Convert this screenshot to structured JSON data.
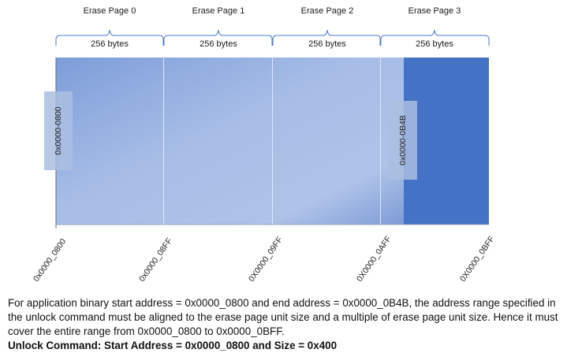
{
  "pages": [
    {
      "name": "Erase Page 0",
      "size": "256 bytes"
    },
    {
      "name": "Erase Page 1",
      "size": "256 bytes"
    },
    {
      "name": "Erase Page 2",
      "size": "256 bytes"
    },
    {
      "name": "Erase Page 3",
      "size": "256 bytes"
    }
  ],
  "addresses": [
    "0x0000_0800",
    "0x0000_08FF",
    "0X0000_09FF",
    "0X0000_0AFF",
    "0X0000_0BFF"
  ],
  "markers": {
    "start": "0x0000-0800",
    "end": "0x0000-0B4B"
  },
  "colors": {
    "range_fill_light": "#a9bfe6",
    "range_fill_dark": "#7b9bd8",
    "page_solid": "#4472c4",
    "brace": "#4a7ac8"
  },
  "caption": {
    "text": "For application binary start address = 0x0000_0800 and end address = 0x0000_0B4B, the address range specified in the unlock command must be aligned to the erase page unit size and a multiple of erase page unit size. Hence it must cover the entire range from 0x0000_0800 to 0x0000_0BFF.",
    "command": "Unlock Command: Start Address = 0x0000_0800 and Size = 0x400"
  }
}
